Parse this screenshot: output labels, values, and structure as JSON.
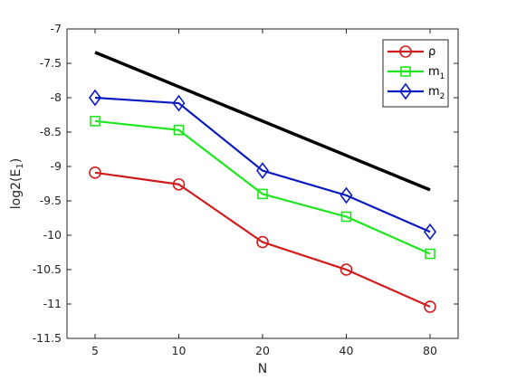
{
  "chart_data": {
    "type": "line",
    "xlabel": "N",
    "ylabel": "log2(E",
    "ylabel_sub": "1",
    "ylabel_close": ")",
    "categories": [
      "5",
      "10",
      "20",
      "40",
      "80"
    ],
    "ylim": [
      -11.5,
      -7
    ],
    "yticks": [
      -7,
      -7.5,
      -8,
      -8.5,
      -9,
      -9.5,
      -10,
      -10.5,
      -11,
      -11.5
    ],
    "ytick_labels": [
      "-7",
      "-7.5",
      "-8",
      "-8.5",
      "-9",
      "-9.5",
      "-10",
      "-10.5",
      "-11",
      "-11.5"
    ],
    "grid": false,
    "legend_position": "top-right",
    "series": [
      {
        "name": "ρ",
        "name_sub": "",
        "color": "#d01c1c",
        "marker": "circle",
        "values": [
          -9.09,
          -9.26,
          -10.1,
          -10.5,
          -11.04
        ]
      },
      {
        "name": "m",
        "name_sub": "1",
        "color": "#1ee61e",
        "marker": "square",
        "values": [
          -8.34,
          -8.47,
          -9.4,
          -9.73,
          -10.27
        ]
      },
      {
        "name": "m",
        "name_sub": "2",
        "color": "#0a1ac0",
        "marker": "diamond",
        "values": [
          -8.0,
          -8.08,
          -9.06,
          -9.42,
          -9.95
        ]
      },
      {
        "name": "",
        "name_sub": "",
        "color": "#000000",
        "marker": "none",
        "values": [
          -7.34,
          null,
          null,
          null,
          -9.34
        ],
        "reference_line": true
      }
    ]
  }
}
